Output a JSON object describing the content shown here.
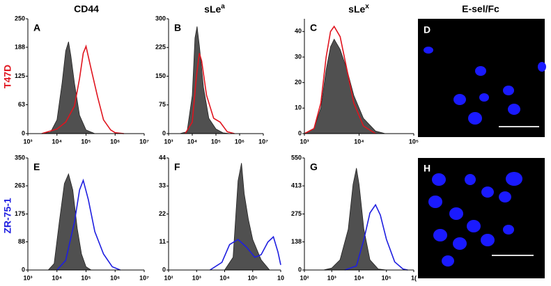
{
  "column_titles": [
    {
      "text": "CD44"
    },
    {
      "text": "sLe",
      "sup": "a"
    },
    {
      "text": "sLe",
      "sup": "x"
    },
    {
      "text": "E-sel/Fc"
    }
  ],
  "row_labels": [
    {
      "text": "T47D",
      "color": "#e0141e"
    },
    {
      "text": "ZR-75-1",
      "color": "#1e1ee0"
    }
  ],
  "images": [
    {
      "label": "D"
    },
    {
      "label": "H"
    }
  ],
  "chart_data": [
    {
      "type": "area",
      "label": "A",
      "log_x": true,
      "xlim": [
        1000,
        10000000
      ],
      "ylim": [
        0,
        250
      ],
      "xticks": [
        {
          "value": 1000,
          "label": "10³"
        },
        {
          "value": 10000,
          "label": "10⁴"
        },
        {
          "value": 100000,
          "label": "10⁵"
        },
        {
          "value": 1000000,
          "label": "10⁶"
        },
        {
          "value": 10000000,
          "label": "10⁷"
        }
      ],
      "yticks": [
        0,
        63,
        125,
        188,
        250
      ],
      "series": [
        {
          "color": "#505050",
          "filled": true,
          "x": [
            3000,
            6000,
            10000,
            15000,
            20000,
            25000,
            30000,
            40000,
            60000,
            100000,
            200000
          ],
          "values": [
            0,
            3,
            30,
            110,
            180,
            200,
            170,
            110,
            40,
            8,
            0
          ]
        },
        {
          "color": "#e0141e",
          "filled": false,
          "x": [
            3000,
            10000,
            20000,
            40000,
            60000,
            80000,
            100000,
            150000,
            250000,
            400000,
            700000,
            1000000,
            2000000
          ],
          "values": [
            0,
            10,
            25,
            60,
            120,
            175,
            190,
            140,
            80,
            30,
            8,
            2,
            0
          ]
        }
      ]
    },
    {
      "type": "area",
      "label": "B",
      "log_x": true,
      "xlim": [
        1000,
        10000000
      ],
      "ylim": [
        0,
        300
      ],
      "xticks": [
        {
          "value": 1000,
          "label": "10³"
        },
        {
          "value": 10000,
          "label": "10⁴"
        },
        {
          "value": 100000,
          "label": "10⁵"
        },
        {
          "value": 1000000,
          "label": "10⁶"
        },
        {
          "value": 10000000,
          "label": "10⁷"
        }
      ],
      "yticks": [
        0,
        75,
        150,
        225,
        300
      ],
      "series": [
        {
          "color": "#505050",
          "filled": true,
          "x": [
            3000,
            6000,
            10000,
            13000,
            16000,
            20000,
            30000,
            50000,
            100000,
            200000,
            400000
          ],
          "values": [
            0,
            5,
            100,
            250,
            280,
            230,
            120,
            40,
            12,
            2,
            0
          ]
        },
        {
          "color": "#e0141e",
          "filled": false,
          "x": [
            5000,
            10000,
            15000,
            20000,
            25000,
            40000,
            80000,
            150000,
            300000,
            600000
          ],
          "values": [
            0,
            30,
            150,
            210,
            190,
            100,
            40,
            30,
            5,
            0
          ]
        }
      ]
    },
    {
      "type": "area",
      "label": "C",
      "log_x": true,
      "xlim": [
        1000,
        100000
      ],
      "ylim": [
        0,
        45
      ],
      "xticks": [
        {
          "value": 1000,
          "label": "10³"
        },
        {
          "value": 10000,
          "label": "10⁴"
        },
        {
          "value": 100000,
          "label": "10⁵"
        }
      ],
      "yticks": [
        0,
        10,
        20,
        30,
        40
      ],
      "series": [
        {
          "color": "#505050",
          "filled": true,
          "x": [
            1000,
            1500,
            2000,
            2500,
            3000,
            3500,
            4500,
            6000,
            8000,
            12000,
            20000,
            30000
          ],
          "values": [
            0,
            2,
            10,
            25,
            34,
            37,
            33,
            25,
            15,
            6,
            1,
            0
          ]
        },
        {
          "color": "#e0141e",
          "filled": false,
          "x": [
            1000,
            1500,
            2000,
            2500,
            3000,
            3500,
            4500,
            6000,
            8000,
            12000,
            20000
          ],
          "values": [
            0,
            2,
            12,
            30,
            40,
            42,
            38,
            25,
            12,
            3,
            0
          ]
        }
      ]
    },
    {
      "type": "area",
      "label": "E",
      "log_x": true,
      "xlim": [
        1000,
        10000000
      ],
      "ylim": [
        0,
        350
      ],
      "xticks": [
        {
          "value": 1000,
          "label": "10³"
        },
        {
          "value": 10000,
          "label": "10⁴"
        },
        {
          "value": 100000,
          "label": "10⁵"
        },
        {
          "value": 1000000,
          "label": "10⁶"
        },
        {
          "value": 10000000,
          "label": "10⁷"
        }
      ],
      "yticks": [
        0,
        88,
        175,
        263,
        350
      ],
      "series": [
        {
          "color": "#505050",
          "filled": true,
          "x": [
            5000,
            8000,
            12000,
            18000,
            25000,
            35000,
            50000,
            70000,
            100000,
            150000
          ],
          "values": [
            0,
            20,
            150,
            270,
            300,
            250,
            130,
            50,
            10,
            0
          ]
        },
        {
          "color": "#1e1ee0",
          "filled": false,
          "x": [
            10000,
            20000,
            40000,
            60000,
            80000,
            120000,
            200000,
            400000,
            800000,
            1500000
          ],
          "values": [
            0,
            30,
            150,
            250,
            280,
            220,
            120,
            50,
            10,
            0
          ]
        }
      ]
    },
    {
      "type": "area",
      "label": "F",
      "log_x": true,
      "xlim": [
        100,
        1000000
      ],
      "ylim": [
        0,
        44
      ],
      "xticks": [
        {
          "value": 100,
          "label": "10²"
        },
        {
          "value": 1000,
          "label": "10³"
        },
        {
          "value": 10000,
          "label": "10⁴"
        },
        {
          "value": 100000,
          "label": "10⁵"
        },
        {
          "value": 1000000,
          "label": "10"
        }
      ],
      "yticks": [
        0,
        11,
        22,
        33,
        44
      ],
      "series": [
        {
          "color": "#505050",
          "filled": true,
          "x": [
            10000,
            20000,
            30000,
            40000,
            50000,
            70000,
            100000,
            200000,
            400000
          ],
          "values": [
            0,
            5,
            35,
            42,
            30,
            20,
            12,
            4,
            0
          ]
        },
        {
          "color": "#1e1ee0",
          "filled": false,
          "x": [
            3000,
            8000,
            15000,
            30000,
            60000,
            120000,
            200000,
            350000,
            550000,
            800000,
            1000000
          ],
          "values": [
            0,
            3,
            10,
            12,
            9,
            5,
            6,
            11,
            13,
            7,
            2
          ]
        }
      ]
    },
    {
      "type": "area",
      "label": "G",
      "log_x": true,
      "xlim": [
        100,
        1000000
      ],
      "ylim": [
        0,
        550
      ],
      "xticks": [
        {
          "value": 100,
          "label": "10²"
        },
        {
          "value": 1000,
          "label": "10³"
        },
        {
          "value": 10000,
          "label": "10⁴"
        },
        {
          "value": 100000,
          "label": "10⁵"
        },
        {
          "value": 1000000,
          "label": "1("
        }
      ],
      "yticks": [
        0,
        138,
        275,
        413,
        550
      ],
      "series": [
        {
          "color": "#505050",
          "filled": true,
          "x": [
            500,
            1000,
            2000,
            4000,
            6000,
            8000,
            10000,
            15000,
            25000,
            50000,
            100000
          ],
          "values": [
            0,
            10,
            50,
            200,
            420,
            500,
            420,
            200,
            50,
            5,
            0
          ]
        },
        {
          "color": "#1e1ee0",
          "filled": false,
          "x": [
            3000,
            8000,
            15000,
            25000,
            40000,
            60000,
            100000,
            200000,
            400000,
            600000
          ],
          "values": [
            0,
            20,
            150,
            280,
            320,
            270,
            150,
            40,
            5,
            0
          ]
        }
      ]
    }
  ]
}
